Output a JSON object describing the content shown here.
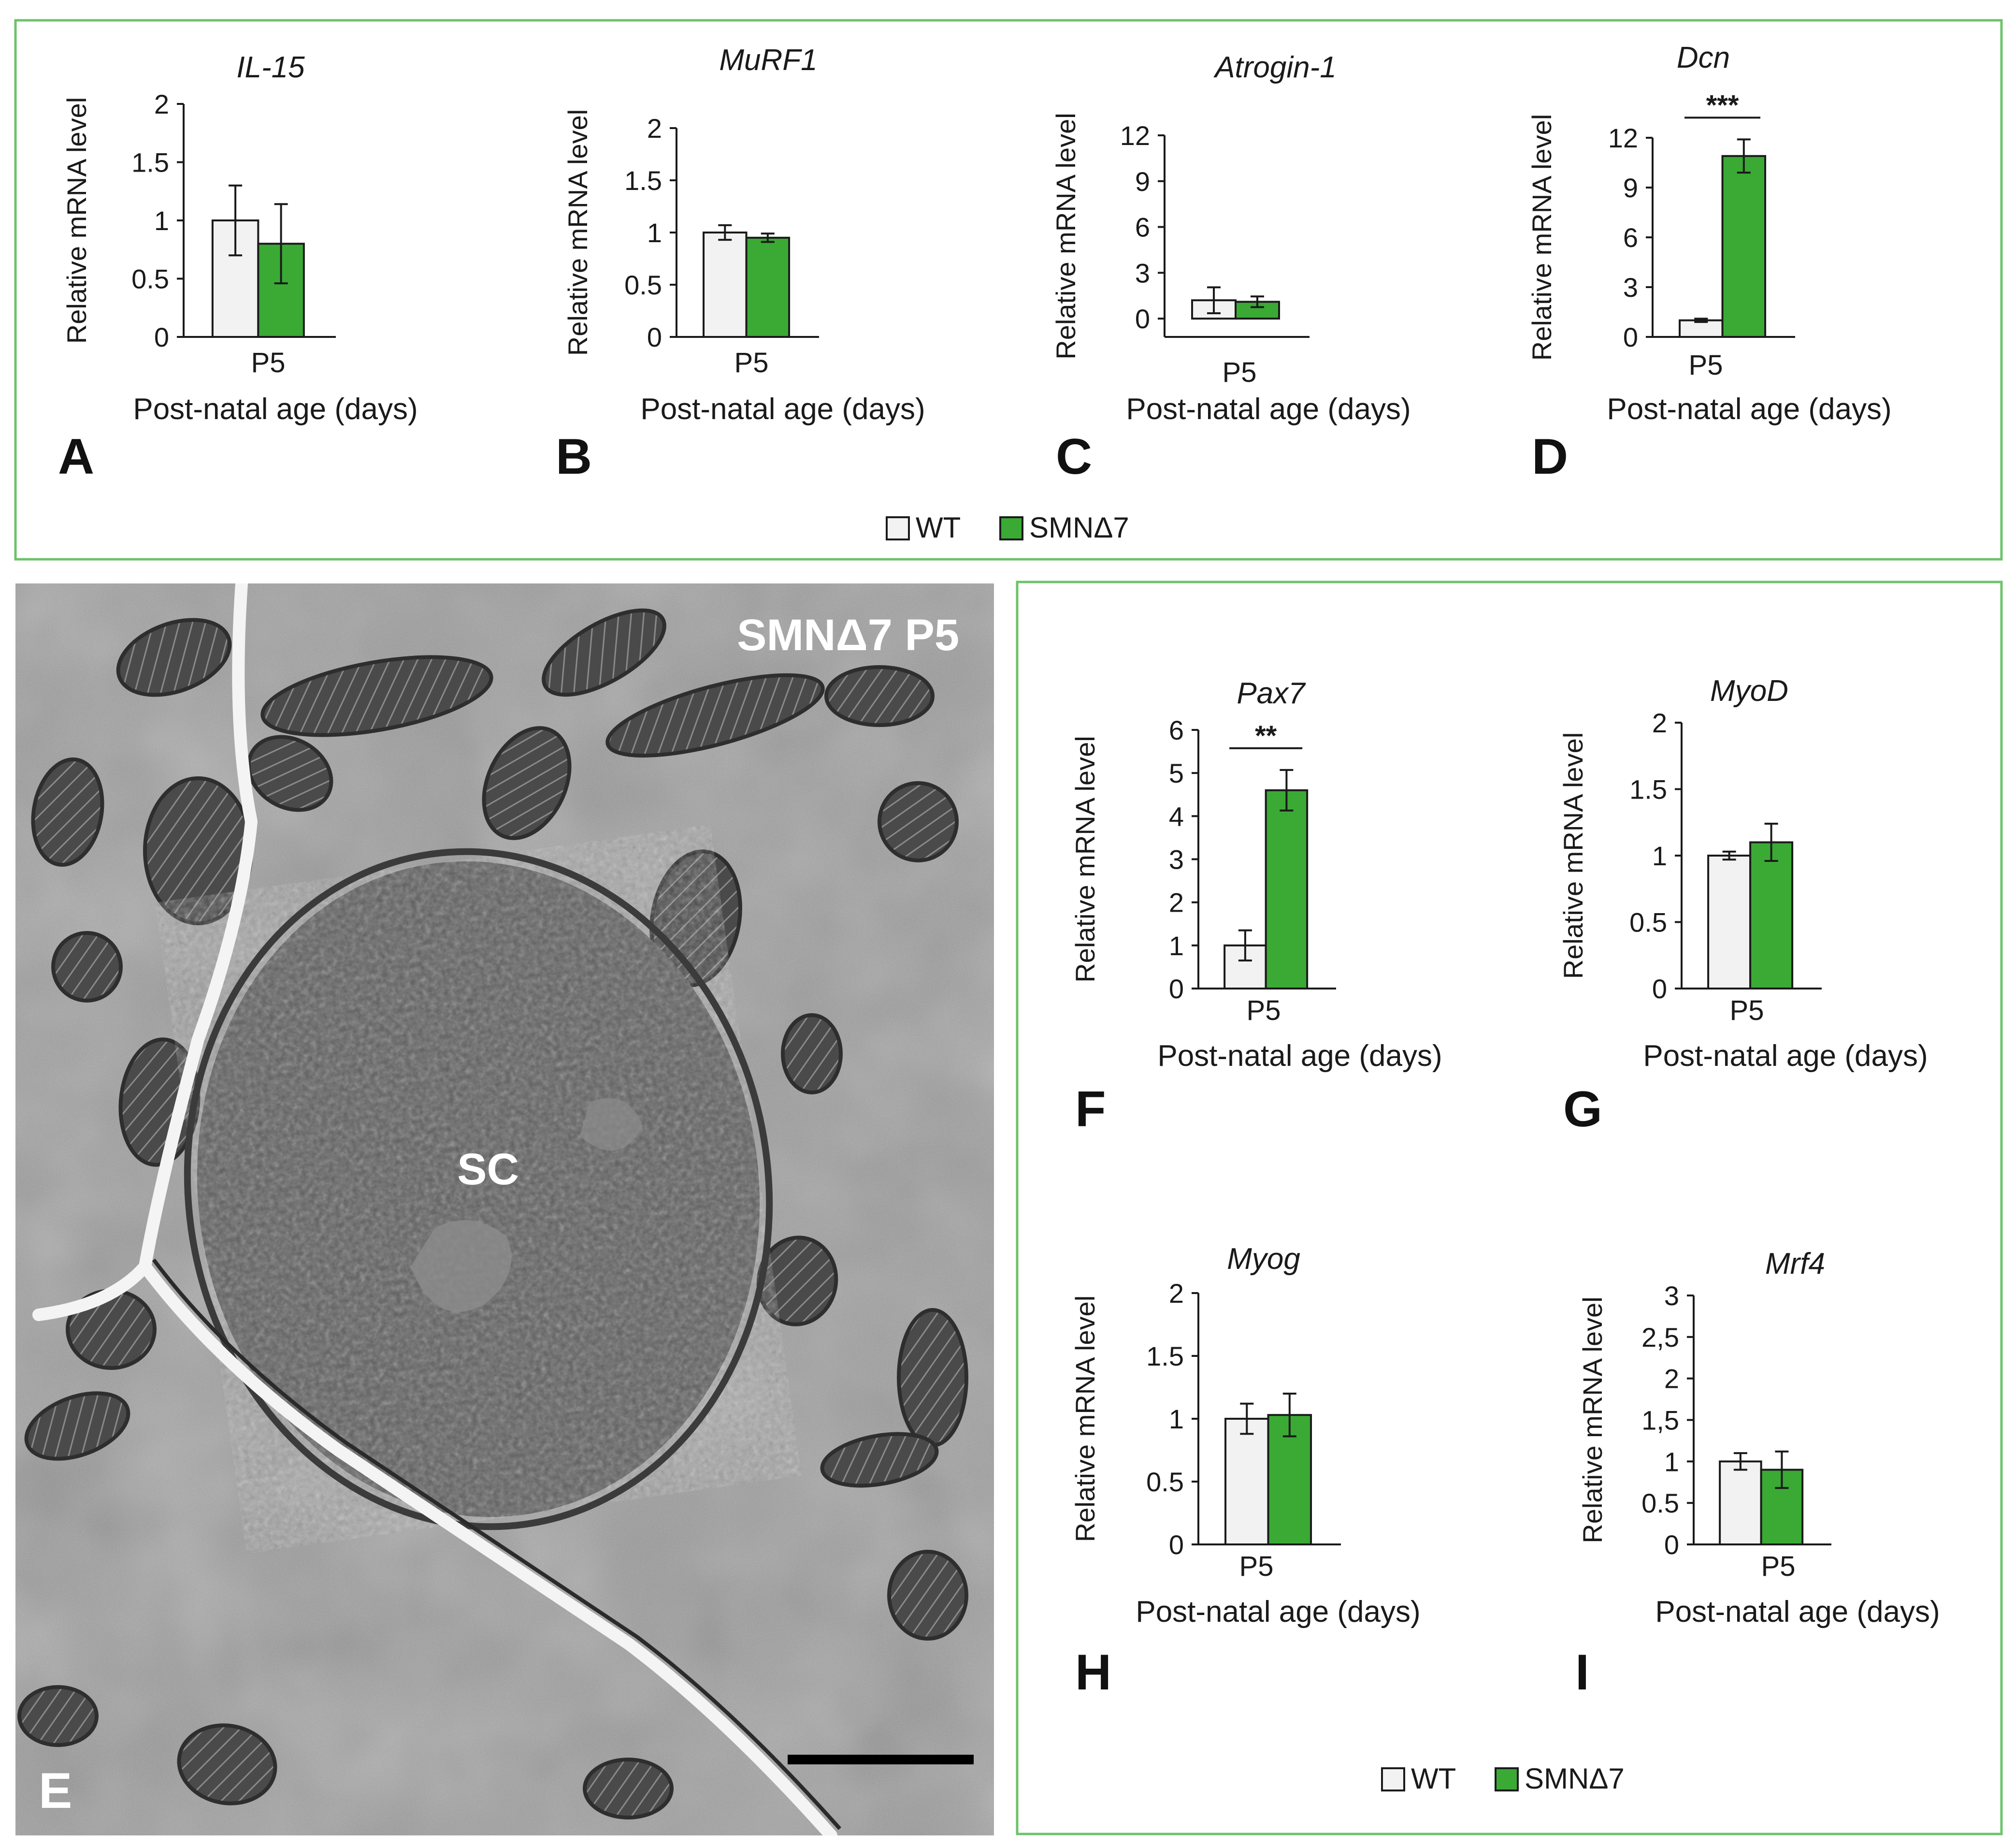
{
  "colors": {
    "wt": "#f2f2f2",
    "smn": "#3aaa35",
    "frame": "#6cc36a",
    "axis": "#1a1a1a"
  },
  "top_legend": {
    "wt": "WT",
    "smn": "SMNΔ7"
  },
  "bottom_legend": {
    "wt": "WT",
    "smn": "SMNΔ7"
  },
  "micrograph": {
    "label": "SMNΔ7 P5",
    "cell_label": "SC",
    "panel_letter": "E"
  },
  "chart_data": [
    {
      "id": "A",
      "type": "bar",
      "title": "IL-15",
      "ylabel": "Relative mRNA level",
      "xlabel": "Post-natal age (days)",
      "categories": [
        "P5"
      ],
      "ylim": [
        0,
        2
      ],
      "yticks": [
        "0",
        "0.5",
        "1",
        "1.5",
        "2"
      ],
      "ytick_values": [
        0,
        0.5,
        1,
        1.5,
        2
      ],
      "series": [
        {
          "name": "WT",
          "values": [
            1.0
          ],
          "errors": [
            0.3
          ]
        },
        {
          "name": "SMNΔ7",
          "values": [
            0.8
          ],
          "errors": [
            0.34
          ]
        }
      ],
      "significance": ""
    },
    {
      "id": "B",
      "type": "bar",
      "title": "MuRF1",
      "ylabel": "Relative mRNA level",
      "xlabel": "Post-natal age (days)",
      "categories": [
        "P5"
      ],
      "ylim": [
        0,
        2
      ],
      "yticks": [
        "0",
        "0.5",
        "1",
        "1.5",
        "2"
      ],
      "ytick_values": [
        0,
        0.5,
        1,
        1.5,
        2
      ],
      "series": [
        {
          "name": "WT",
          "values": [
            1.0
          ],
          "errors": [
            0.07
          ]
        },
        {
          "name": "SMNΔ7",
          "values": [
            0.95
          ],
          "errors": [
            0.04
          ]
        }
      ],
      "significance": ""
    },
    {
      "id": "C",
      "type": "bar",
      "title": "Atrogin-1",
      "ylabel": "Relative mRNA level",
      "xlabel": "Post-natal age (days)",
      "categories": [
        "P5"
      ],
      "ylim": [
        -1.2,
        12
      ],
      "yticks": [
        "0",
        "3",
        "6",
        "9",
        "12"
      ],
      "ytick_values": [
        0,
        3,
        6,
        9,
        12
      ],
      "series": [
        {
          "name": "WT",
          "values": [
            1.2
          ],
          "errors": [
            0.85
          ]
        },
        {
          "name": "SMNΔ7",
          "values": [
            1.1
          ],
          "errors": [
            0.35
          ]
        }
      ],
      "significance": ""
    },
    {
      "id": "D",
      "type": "bar",
      "title": "Dcn",
      "ylabel": "Relative mRNA level",
      "xlabel": "Post-natal age (days)",
      "categories": [
        "P5"
      ],
      "ylim": [
        0,
        12
      ],
      "yticks": [
        "0",
        "3",
        "6",
        "9",
        "12"
      ],
      "ytick_values": [
        0,
        3,
        6,
        9,
        12
      ],
      "series": [
        {
          "name": "WT",
          "values": [
            1.0
          ],
          "errors": [
            0.1
          ]
        },
        {
          "name": "SMNΔ7",
          "values": [
            10.9
          ],
          "errors": [
            1.0
          ]
        }
      ],
      "significance": "***"
    },
    {
      "id": "F",
      "type": "bar",
      "title": "Pax7",
      "ylabel": "Relative mRNA level",
      "xlabel": "Post-natal age (days)",
      "categories": [
        "P5"
      ],
      "ylim": [
        0,
        6
      ],
      "yticks": [
        "0",
        "1",
        "2",
        "3",
        "4",
        "5",
        "6"
      ],
      "ytick_values": [
        0,
        1,
        2,
        3,
        4,
        5,
        6
      ],
      "series": [
        {
          "name": "WT",
          "values": [
            1.0
          ],
          "errors": [
            0.35
          ]
        },
        {
          "name": "SMNΔ7",
          "values": [
            4.6
          ],
          "errors": [
            0.47
          ]
        }
      ],
      "significance": "**"
    },
    {
      "id": "G",
      "type": "bar",
      "title": "MyoD",
      "ylabel": "Relative mRNA level",
      "xlabel": "Post-natal age (days)",
      "categories": [
        "P5"
      ],
      "ylim": [
        0,
        2
      ],
      "yticks": [
        "0",
        "0.5",
        "1",
        "1.5",
        "2"
      ],
      "ytick_values": [
        0,
        0.5,
        1,
        1.5,
        2
      ],
      "series": [
        {
          "name": "WT",
          "values": [
            1.0
          ],
          "errors": [
            0.03
          ]
        },
        {
          "name": "SMNΔ7",
          "values": [
            1.1
          ],
          "errors": [
            0.14
          ]
        }
      ],
      "significance": ""
    },
    {
      "id": "H",
      "type": "bar",
      "title": "Myog",
      "ylabel": "Relative mRNA level",
      "xlabel": "Post-natal age (days)",
      "categories": [
        "P5"
      ],
      "ylim": [
        0,
        2
      ],
      "yticks": [
        "0",
        "0.5",
        "1",
        "1.5",
        "2"
      ],
      "ytick_values": [
        0,
        0.5,
        1,
        1.5,
        2
      ],
      "series": [
        {
          "name": "WT",
          "values": [
            1.0
          ],
          "errors": [
            0.12
          ]
        },
        {
          "name": "SMNΔ7",
          "values": [
            1.03
          ],
          "errors": [
            0.17
          ]
        }
      ],
      "significance": ""
    },
    {
      "id": "I",
      "type": "bar",
      "title": "Mrf4",
      "ylabel": "Relative mRNA level",
      "xlabel": "Post-natal age (days)",
      "categories": [
        "P5"
      ],
      "ylim": [
        0,
        3
      ],
      "yticks": [
        "0",
        "0.5",
        "1",
        "1,5",
        "2",
        "2,5",
        "3"
      ],
      "ytick_values": [
        0,
        0.5,
        1,
        1.5,
        2,
        2.5,
        3
      ],
      "series": [
        {
          "name": "WT",
          "values": [
            1.0
          ],
          "errors": [
            0.1
          ]
        },
        {
          "name": "SMNΔ7",
          "values": [
            0.9
          ],
          "errors": [
            0.22
          ]
        }
      ],
      "significance": ""
    }
  ]
}
